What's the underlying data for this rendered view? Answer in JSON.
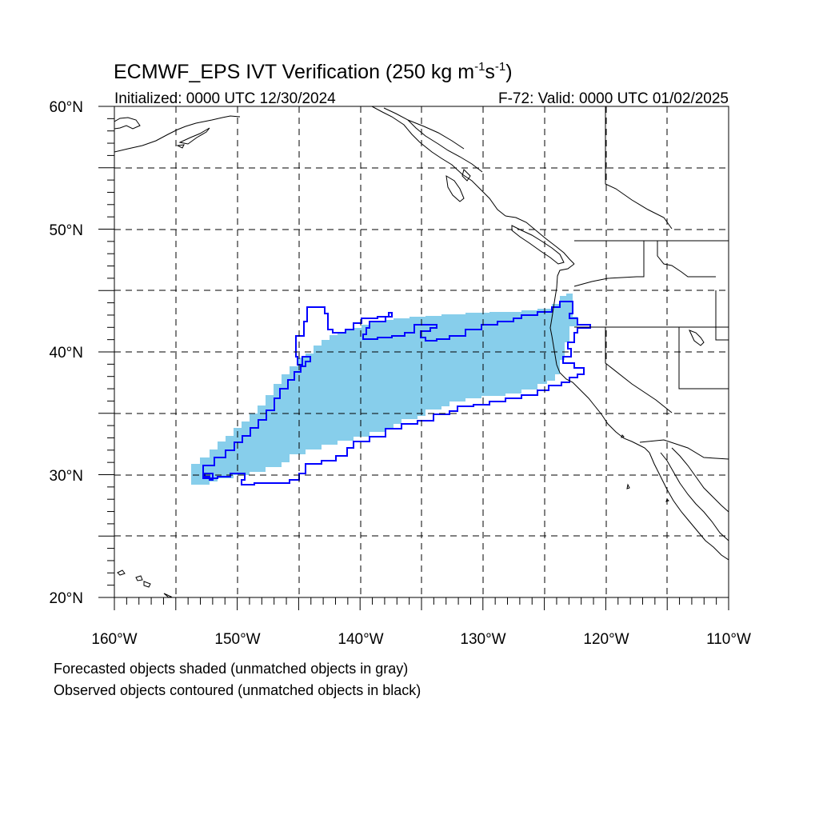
{
  "title": {
    "main": "ECMWF_EPS IVT Verification (250 kg m",
    "exp1": "-1",
    "mid": "s",
    "exp2": "-1",
    "close": ")"
  },
  "subtitle_left": "Initialized: 0000 UTC 12/30/2024",
  "subtitle_right": "F-72: Valid: 0000 UTC 01/02/2025",
  "lat_labels": [
    "60°N",
    "50°N",
    "40°N",
    "30°N",
    "20°N"
  ],
  "lon_labels": [
    "160°W",
    "150°W",
    "140°W",
    "130°W",
    "120°W",
    "110°W"
  ],
  "footnote_1": "Forecasted objects shaded (unmatched objects in gray)",
  "footnote_2": "Observed objects contoured (unmatched objects in black)",
  "colors": {
    "forecast_fill": "#87ceeb",
    "observed_contour": "#0000ff",
    "coastline": "#000000",
    "grid": "#000000"
  }
}
